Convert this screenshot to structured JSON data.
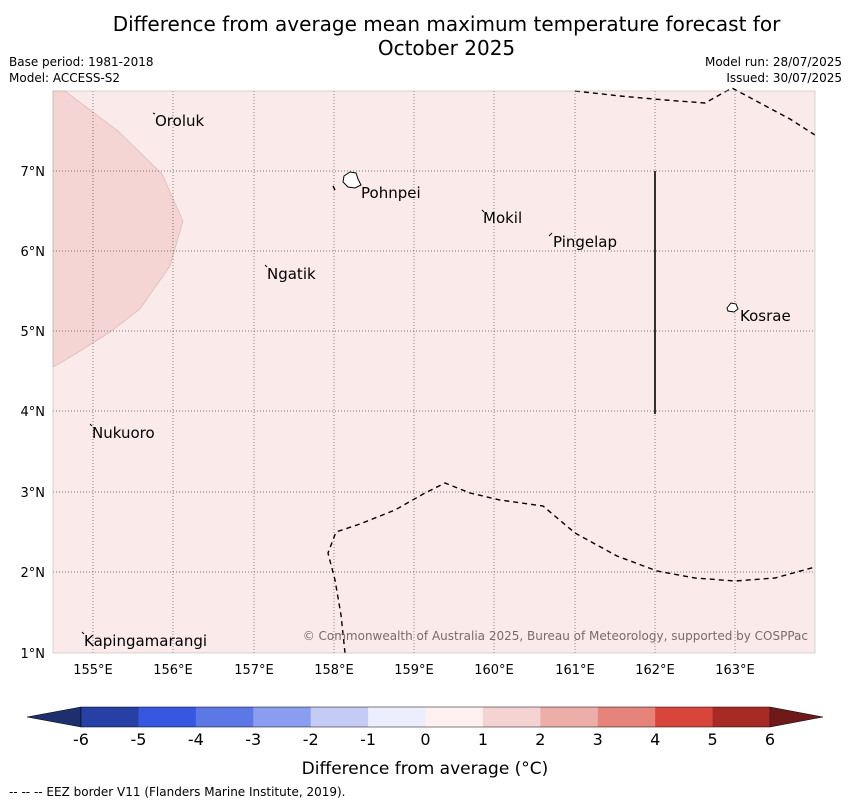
{
  "title_line1": "Difference from average mean maximum temperature forecast for",
  "title_line2": "October 2025",
  "base_period": "Base period: 1981-2018",
  "model": "Model: ACCESS-S2",
  "model_run": "Model run: 28/07/2025",
  "issued": "Issued: 30/07/2025",
  "copyright": "© Commonwealth of Australia 2025, Bureau of Meteorology, supported by COSPPac",
  "footer": "--  --  -- EEZ border V11 (Flanders Marine Institute, 2019).",
  "map": {
    "lon_labels": [
      "155°E",
      "156°E",
      "157°E",
      "158°E",
      "159°E",
      "160°E",
      "161°E",
      "162°E",
      "163°E"
    ],
    "lat_labels": [
      "7°N",
      "6°N",
      "5°N",
      "4°N",
      "3°N",
      "2°N",
      "1°N"
    ],
    "places": [
      {
        "name": "Oroluk"
      },
      {
        "name": "Pohnpei"
      },
      {
        "name": "Mokil"
      },
      {
        "name": "Pingelap"
      },
      {
        "name": "Ngatik"
      },
      {
        "name": "Kosrae"
      },
      {
        "name": "Nukuoro"
      },
      {
        "name": "Kapingamarangi"
      }
    ],
    "background_color": "#fbeaea",
    "warm_zone_color": "#f5d4d4"
  },
  "colorbar": {
    "label": "Difference from average (°C)",
    "ticks": [
      "-6",
      "-5",
      "-4",
      "-3",
      "-2",
      "-1",
      "0",
      "1",
      "2",
      "3",
      "4",
      "5",
      "6"
    ],
    "colors": [
      "#2740a6",
      "#3657df",
      "#5c78e6",
      "#8a9df0",
      "#c4cbf5",
      "#eceefe",
      "#fff1ef",
      "#f5d3d3",
      "#edaeaa",
      "#e6837b",
      "#d9453b",
      "#a82a25"
    ],
    "extend_low_color": "#1e2f6d",
    "extend_high_color": "#6e1a18"
  }
}
